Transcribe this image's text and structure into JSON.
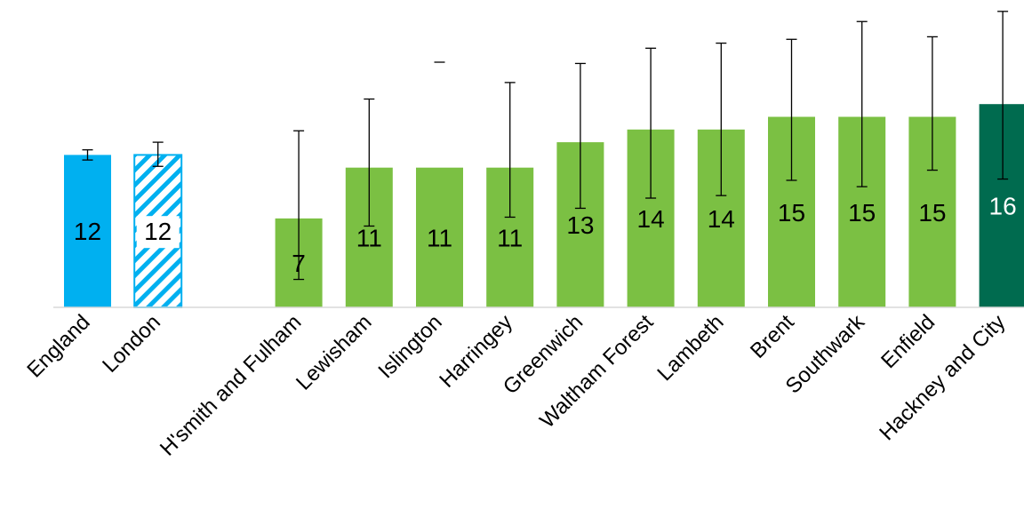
{
  "chart_data": {
    "type": "bar",
    "title": "",
    "xlabel": "",
    "ylabel": "",
    "ylim": [
      0,
      24
    ],
    "grid": false,
    "legend": "none",
    "bars": [
      {
        "category": "England",
        "value": 12,
        "ci_low": 11.6,
        "ci_high": 12.4,
        "style": "england"
      },
      {
        "category": "London",
        "value": 12,
        "ci_low": 11.1,
        "ci_high": 13.0,
        "style": "london"
      },
      {
        "category": "",
        "value": null,
        "ci_low": null,
        "ci_high": null,
        "style": "gap"
      },
      {
        "category": "H'smith and Fulham",
        "value": 7,
        "ci_low": 2.2,
        "ci_high": 13.9,
        "style": "borough"
      },
      {
        "category": "Lewisham",
        "value": 11,
        "ci_low": 6.4,
        "ci_high": 16.4,
        "style": "borough"
      },
      {
        "category": "Islington",
        "value": 11,
        "ci_low": null,
        "ci_high": 19.3,
        "style": "borough"
      },
      {
        "category": "Harringey",
        "value": 11,
        "ci_low": 7.1,
        "ci_high": 17.7,
        "style": "borough"
      },
      {
        "category": "Greenwich",
        "value": 13,
        "ci_low": 7.8,
        "ci_high": 19.2,
        "style": "borough"
      },
      {
        "category": "Waltham Forest",
        "value": 14,
        "ci_low": 8.6,
        "ci_high": 20.4,
        "style": "borough"
      },
      {
        "category": "Lambeth",
        "value": 14,
        "ci_low": 8.8,
        "ci_high": 20.8,
        "style": "borough"
      },
      {
        "category": "Brent",
        "value": 15,
        "ci_low": 10.0,
        "ci_high": 21.1,
        "style": "borough"
      },
      {
        "category": "Southwark",
        "value": 15,
        "ci_low": 9.5,
        "ci_high": 22.5,
        "style": "borough"
      },
      {
        "category": "Enfield",
        "value": 15,
        "ci_low": 10.8,
        "ci_high": 21.3,
        "style": "borough"
      },
      {
        "category": "Hackney and City",
        "value": 16,
        "ci_low": 10.1,
        "ci_high": 23.3,
        "style": "highlight"
      }
    ],
    "colors": {
      "england": "#00b0f0",
      "london_stripe": "#00b0f0",
      "borough": "#7bc043",
      "highlight": "#006b4f",
      "label_dark": "#000000",
      "label_light": "#ffffff",
      "axis": "#d9d9d9",
      "error_bar": "#000000"
    }
  }
}
